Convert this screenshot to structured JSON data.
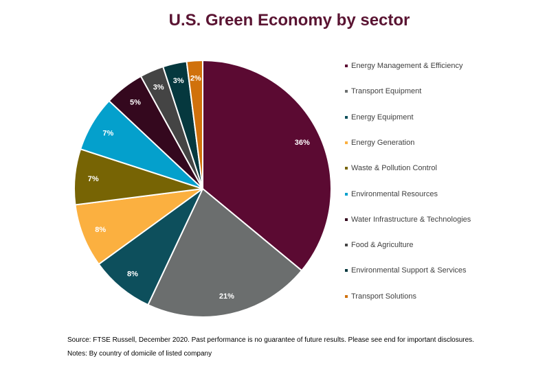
{
  "chart_data": {
    "type": "pie",
    "title": "U.S. Green Economy by sector",
    "slices": [
      {
        "label": "Energy Management & Efficiency",
        "value": 36,
        "display": "36%",
        "color": "#5b0a32"
      },
      {
        "label": "Transport Equipment",
        "value": 21,
        "display": "21%",
        "color": "#6b6e6e"
      },
      {
        "label": "Energy Equipment",
        "value": 8,
        "display": "8%",
        "color": "#0d4f5c"
      },
      {
        "label": "Energy Generation",
        "value": 8,
        "display": "8%",
        "color": "#fbb040"
      },
      {
        "label": "Waste & Pollution Control",
        "value": 7,
        "display": "7%",
        "color": "#776404"
      },
      {
        "label": "Environmental Resources",
        "value": 7,
        "display": "7%",
        "color": "#04a0cc"
      },
      {
        "label": "Water Infrastructure & Technologies",
        "value": 5,
        "display": "5%",
        "color": "#34081e"
      },
      {
        "label": "Food & Agriculture",
        "value": 3,
        "display": "3%",
        "color": "#444444"
      },
      {
        "label": "Environmental Support & Services",
        "value": 3,
        "display": "3%",
        "color": "#05383e"
      },
      {
        "label": "Transport Solutions",
        "value": 2,
        "display": "2%",
        "color": "#d0710c"
      }
    ],
    "legend_position": "right"
  },
  "source_text": "Source: FTSE Russell, December 2020. Past performance is no guarantee of future results. Please see end for important disclosures. Notes: By country of domicile of listed company"
}
